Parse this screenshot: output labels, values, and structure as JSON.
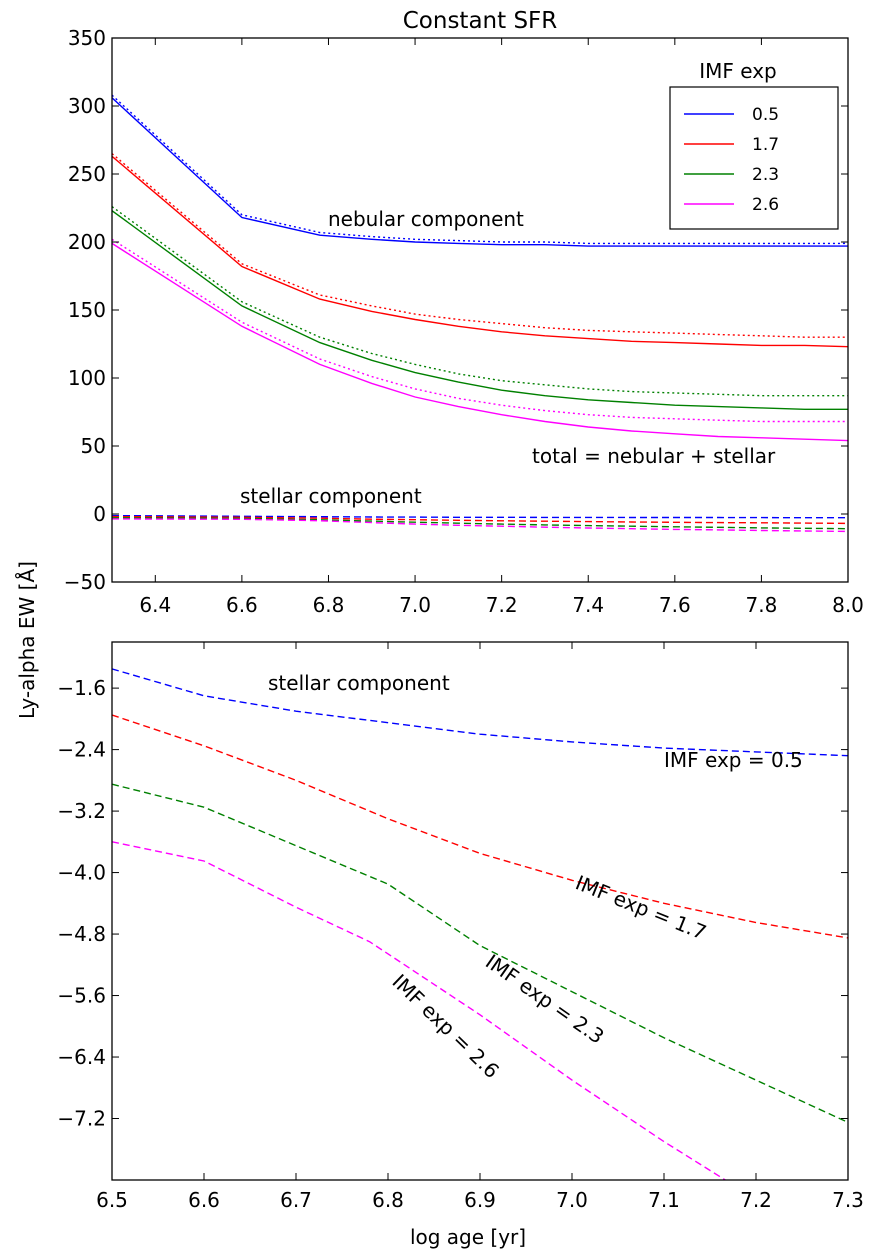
{
  "figure": {
    "title": "Constant SFR",
    "ylabel": "Ly-alpha EW [Å]",
    "xlabel": "log age [yr]"
  },
  "colors": {
    "0.5": "#0000ff",
    "1.7": "#ff0000",
    "2.3": "#008000",
    "2.6": "#ff00ff"
  },
  "chart_data": [
    {
      "type": "line",
      "title": "Constant SFR",
      "xlim": [
        6.3,
        8.0
      ],
      "ylim": [
        -50,
        350
      ],
      "xticks": [
        "6.4",
        "6.6",
        "6.8",
        "7.0",
        "7.2",
        "7.4",
        "7.6",
        "7.8",
        "8.0"
      ],
      "yticks": [
        "−50",
        "0",
        "50",
        "100",
        "150",
        "200",
        "250",
        "300",
        "350"
      ],
      "grid": false,
      "legend": {
        "title": "IMF exp",
        "placement": "top-right",
        "entries": [
          "0.5",
          "1.7",
          "2.3",
          "2.6"
        ]
      },
      "annotations": {
        "nebular": "nebular component",
        "total": "total = nebular + stellar",
        "stellar": "stellar component"
      },
      "x": [
        6.3,
        6.6,
        6.78,
        6.9,
        7.0,
        7.1,
        7.2,
        7.3,
        7.4,
        7.5,
        7.6,
        7.7,
        7.8,
        7.9,
        8.0
      ],
      "series": [
        {
          "name": "0.5",
          "style": "total",
          "values": [
            306,
            218,
            205,
            202,
            200,
            199,
            198,
            198,
            197,
            197,
            197,
            197,
            197,
            197,
            197
          ]
        },
        {
          "name": "0.5",
          "style": "nebular",
          "values": [
            308,
            220,
            207,
            204,
            202,
            201,
            200,
            200,
            199,
            199,
            199,
            199,
            199,
            199,
            199
          ]
        },
        {
          "name": "0.5",
          "style": "stellar",
          "values": [
            -1.2,
            -1.7,
            -2.0,
            -2.2,
            -2.3,
            -2.4,
            -2.45,
            -2.5,
            -2.5,
            -2.55,
            -2.6,
            -2.6,
            -2.65,
            -2.7,
            -2.7
          ]
        },
        {
          "name": "1.7",
          "style": "total",
          "values": [
            263,
            182,
            158,
            149,
            143,
            138,
            134,
            131,
            129,
            127,
            126,
            125,
            124,
            124,
            123
          ]
        },
        {
          "name": "1.7",
          "style": "nebular",
          "values": [
            265,
            184,
            161,
            153,
            147,
            143,
            140,
            137,
            135,
            134,
            133,
            132,
            131,
            130,
            130
          ]
        },
        {
          "name": "1.7",
          "style": "stellar",
          "values": [
            -1.9,
            -2.4,
            -3.1,
            -3.8,
            -4.2,
            -4.6,
            -5.0,
            -5.3,
            -5.6,
            -5.9,
            -6.1,
            -6.3,
            -6.5,
            -6.7,
            -6.9
          ]
        },
        {
          "name": "2.3",
          "style": "total",
          "values": [
            223,
            153,
            126,
            113,
            104,
            97,
            91,
            87,
            84,
            82,
            80,
            79,
            78,
            77,
            77
          ]
        },
        {
          "name": "2.3",
          "style": "nebular",
          "values": [
            226,
            156,
            130,
            118,
            110,
            103,
            98,
            95,
            92,
            90,
            89,
            88,
            87,
            87,
            87
          ]
        },
        {
          "name": "2.3",
          "style": "stellar",
          "values": [
            -2.8,
            -3.2,
            -4.3,
            -5.2,
            -6.0,
            -6.8,
            -7.4,
            -8.0,
            -8.5,
            -9.0,
            -9.4,
            -9.8,
            -10.2,
            -10.5,
            -10.8
          ]
        },
        {
          "name": "2.6",
          "style": "total",
          "values": [
            199,
            138,
            110,
            96,
            86,
            79,
            73,
            68,
            64,
            61,
            59,
            57,
            56,
            55,
            54
          ]
        },
        {
          "name": "2.6",
          "style": "nebular",
          "values": [
            202,
            141,
            114,
            101,
            92,
            85,
            80,
            76,
            73,
            71,
            70,
            69,
            68,
            68,
            68
          ]
        },
        {
          "name": "2.6",
          "style": "stellar",
          "values": [
            -3.6,
            -3.9,
            -4.9,
            -6.3,
            -7.4,
            -8.3,
            -9.0,
            -9.7,
            -10.3,
            -10.8,
            -11.3,
            -11.7,
            -12.1,
            -12.5,
            -12.8
          ]
        }
      ]
    },
    {
      "type": "line",
      "title": "",
      "xlim": [
        6.5,
        7.3
      ],
      "ylim": [
        -8.0,
        -1.0
      ],
      "xticks": [
        "6.5",
        "6.6",
        "6.7",
        "6.8",
        "6.9",
        "7.0",
        "7.1",
        "7.2",
        "7.3"
      ],
      "yticks": [
        "−1.6",
        "−2.4",
        "−3.2",
        "−4.0",
        "−4.8",
        "−5.6",
        "−6.4",
        "−7.2"
      ],
      "grid": false,
      "annotations": {
        "stellar": "stellar component",
        "label_05": "IMF exp = 0.5",
        "label_17": "IMF exp = 1.7",
        "label_23": "IMF exp = 2.3",
        "label_26": "IMF exp = 2.6"
      },
      "series": [
        {
          "name": "0.5",
          "x": [
            6.5,
            6.6,
            6.7,
            6.8,
            6.9,
            7.0,
            7.1,
            7.2,
            7.3
          ],
          "values": [
            -1.35,
            -1.7,
            -1.9,
            -2.05,
            -2.2,
            -2.3,
            -2.38,
            -2.43,
            -2.48
          ]
        },
        {
          "name": "1.7",
          "x": [
            6.5,
            6.6,
            6.7,
            6.8,
            6.9,
            7.0,
            7.1,
            7.2,
            7.3
          ],
          "values": [
            -1.95,
            -2.35,
            -2.8,
            -3.3,
            -3.75,
            -4.1,
            -4.4,
            -4.65,
            -4.85
          ]
        },
        {
          "name": "2.3",
          "x": [
            6.5,
            6.6,
            6.7,
            6.8,
            6.9,
            7.0,
            7.1,
            7.2,
            7.3
          ],
          "values": [
            -2.85,
            -3.15,
            -3.65,
            -4.15,
            -4.95,
            -5.55,
            -6.15,
            -6.7,
            -7.25
          ]
        },
        {
          "name": "2.6",
          "x": [
            6.5,
            6.6,
            6.7,
            6.78,
            6.9,
            7.0,
            7.1,
            7.2
          ],
          "values": [
            -3.6,
            -3.85,
            -4.45,
            -4.9,
            -5.85,
            -6.7,
            -7.5,
            -8.25
          ]
        }
      ]
    }
  ]
}
